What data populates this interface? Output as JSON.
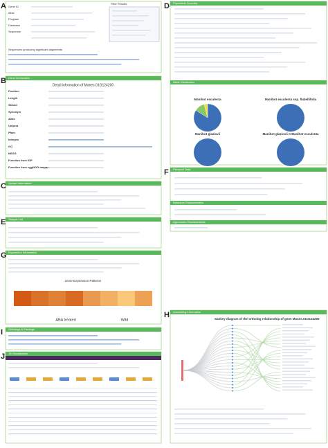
{
  "panels": {
    "A": {
      "letter": "A",
      "filter_title": "Filter Results",
      "fields": [
        "Gene ID",
        "Alias",
        "Program",
        "Database",
        "Sequence"
      ],
      "table_title": "Sequences producing significant alignments"
    },
    "B": {
      "letter": "B",
      "header": "Gene Information",
      "title": "Detail information of Manes.01G124200",
      "rows": [
        "Position",
        "Length",
        "Strand",
        "Synonym",
        "Alias",
        "Uniprot",
        "Pfam",
        "Interpro",
        "GO",
        "KEGG",
        "Function from IDP",
        "Function from eggNOG-mapper"
      ]
    },
    "C": {
      "letter": "C",
      "header": "Variant Information"
    },
    "D": {
      "letter": "D",
      "header": "Population Diversity",
      "sub_header": "Allele Distribution",
      "pies": [
        {
          "title": "Manihot esculenta",
          "values": [
            84,
            12,
            4
          ],
          "colors": [
            "#3d6fb6",
            "#8cc665",
            "#f0e04a"
          ]
        },
        {
          "title": "Manihot esculenta ssp. flabellifolia",
          "values": [
            100
          ],
          "colors": [
            "#3d6fb6"
          ]
        },
        {
          "title": "Manihot glaziovii",
          "values": [
            100
          ],
          "colors": [
            "#3d6fb6"
          ]
        },
        {
          "title": "Manihot glaziovii X Manihot esculenta",
          "values": [
            100
          ],
          "colors": [
            "#3d6fb6"
          ]
        }
      ]
    },
    "E": {
      "letter": "E",
      "header": "Sample List"
    },
    "F": {
      "letter": "F",
      "header": "Passport Data",
      "sub_headers": [
        "Botanical Characteristics",
        "Agronomic Characteristics"
      ]
    },
    "G": {
      "letter": "G",
      "header": "Expression Information",
      "heat_title": "Gene Expression Patterns",
      "heat_values": [
        3.1,
        2.8,
        2.6,
        2.9,
        2.3,
        2.0,
        1.7,
        2.2
      ],
      "groups": [
        "ABA treated",
        "Wild"
      ]
    },
    "H": {
      "letter": "H",
      "header": "Annotating Information",
      "title": "Sankey diagram of the ortholog relationship of gene Manes.01G124200"
    },
    "I": {
      "letter": "I",
      "header": "Orthologs & Paralogs"
    },
    "J": {
      "letter": "J",
      "header": "JB Visualization"
    }
  }
}
